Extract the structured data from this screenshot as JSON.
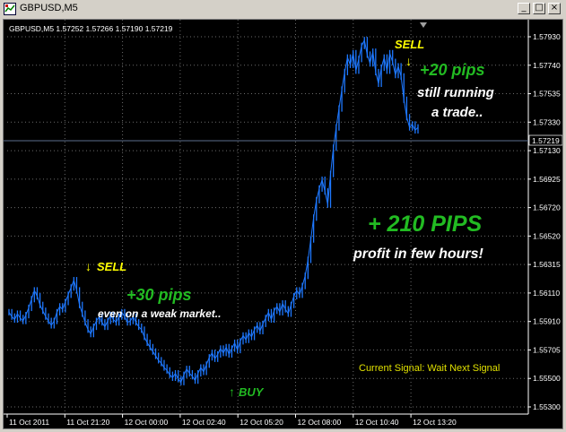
{
  "window": {
    "title": "GBPUSD,M5",
    "buttons": {
      "minimize": "_",
      "restore": "□",
      "close": "×"
    }
  },
  "chart_header": "GBPUSD,M5  1.57252 1.57266 1.57190 1.57219",
  "chart_data": {
    "type": "line",
    "symbol": "GBPUSD",
    "timeframe": "M5",
    "ohlc": {
      "open": 1.57252,
      "high": 1.57266,
      "low": 1.5719,
      "close": 1.57219
    },
    "current_price": "1.57219",
    "ylim": [
      1.5525,
      1.5796
    ],
    "y_ticks": [
      "1.57930",
      "1.57740",
      "1.57535",
      "1.57330",
      "1.57130",
      "1.56925",
      "1.56720",
      "1.56520",
      "1.56315",
      "1.56110",
      "1.55910",
      "1.55705",
      "1.55500",
      "1.55300"
    ],
    "x_ticks": [
      "11 Oct 2011",
      "11 Oct 21:20",
      "12 Oct 00:00",
      "12 Oct 02:40",
      "12 Oct 05:20",
      "12 Oct 08:00",
      "12 Oct 10:40",
      "12 Oct 13:20"
    ],
    "series": [
      {
        "x": [
          0,
          1,
          2,
          3,
          4,
          5,
          6,
          7,
          8,
          9,
          10,
          11,
          12,
          13,
          14,
          15,
          16,
          17,
          18,
          19,
          20,
          21,
          22,
          23,
          24,
          25,
          26,
          27,
          28,
          29,
          30,
          31,
          32,
          33,
          34,
          35,
          36,
          37,
          38,
          39,
          40,
          41,
          42,
          43,
          44,
          45,
          46,
          47,
          48,
          49,
          50,
          51,
          52,
          53,
          54,
          55,
          56,
          57,
          58,
          59,
          60,
          61,
          62,
          63,
          64,
          65,
          66,
          67,
          68,
          69,
          70,
          71,
          72,
          73,
          74,
          75,
          76,
          77,
          78,
          79,
          80,
          81,
          82,
          83,
          84,
          85,
          86,
          87,
          88,
          89,
          90,
          91,
          92,
          93,
          94,
          95,
          96,
          97,
          98,
          99,
          100,
          101,
          102,
          103,
          104,
          105,
          106,
          107,
          108,
          109,
          110,
          111,
          112,
          113,
          114,
          115,
          116,
          117,
          118,
          119,
          120,
          121,
          122,
          123,
          124,
          125,
          126,
          127,
          128,
          129,
          130,
          131,
          132,
          133,
          134,
          135,
          136,
          137,
          138,
          139,
          140,
          141,
          142,
          143,
          144,
          145,
          146,
          147,
          148,
          149,
          150,
          151,
          152,
          153,
          154,
          155,
          156,
          157,
          158,
          159
        ],
        "values": [
          1.5595,
          1.5592,
          1.559,
          1.5594,
          1.5591,
          1.5589,
          1.5593,
          1.5598,
          1.5604,
          1.561,
          1.5606,
          1.56,
          1.5596,
          1.5592,
          1.5589,
          1.5586,
          1.5589,
          1.5595,
          1.5599,
          1.5597,
          1.5602,
          1.5607,
          1.5612,
          1.5617,
          1.561,
          1.56,
          1.5594,
          1.5588,
          1.5583,
          1.558,
          1.5585,
          1.5589,
          1.5592,
          1.5588,
          1.5585,
          1.5589,
          1.5593,
          1.559,
          1.5588,
          1.5592,
          1.5595,
          1.5592,
          1.5588,
          1.5589,
          1.5592,
          1.5588,
          1.5585,
          1.5583,
          1.5578,
          1.5574,
          1.5571,
          1.5568,
          1.5565,
          1.5562,
          1.556,
          1.5557,
          1.5555,
          1.5552,
          1.555,
          1.5553,
          1.5549,
          1.5547,
          1.5552,
          1.5556,
          1.5553,
          1.5551,
          1.5548,
          1.5553,
          1.5557,
          1.5554,
          1.5559,
          1.5564,
          1.5567,
          1.5563,
          1.5566,
          1.557,
          1.5567,
          1.5571,
          1.5566,
          1.557,
          1.5574,
          1.5569,
          1.5575,
          1.5579,
          1.5576,
          1.5581,
          1.5578,
          1.5583,
          1.5586,
          1.5582,
          1.5587,
          1.5591,
          1.5595,
          1.559,
          1.5596,
          1.5599,
          1.5595,
          1.5601,
          1.5597,
          1.5594,
          1.56,
          1.5606,
          1.561,
          1.5607,
          1.5613,
          1.562,
          1.5631,
          1.5645,
          1.566,
          1.5672,
          1.568,
          1.5686,
          1.5678,
          1.5669,
          1.569,
          1.5708,
          1.5722,
          1.5735,
          1.5748,
          1.576,
          1.577,
          1.5765,
          1.5773,
          1.5761,
          1.5769,
          1.5778,
          1.5782,
          1.5772,
          1.5766,
          1.5774,
          1.576,
          1.5752,
          1.5763,
          1.577,
          1.5761,
          1.5773,
          1.5767,
          1.5758,
          1.5764,
          1.5757,
          1.5741,
          1.5729,
          1.5722,
          1.5724,
          1.572,
          1.5722,
          1.5722,
          1.5722,
          1.5722,
          1.5722,
          1.5722,
          1.5722,
          1.5722,
          1.5722,
          1.5722,
          1.5722,
          1.5722,
          1.5722,
          1.5722,
          1.5722
        ],
        "visible_count": 146
      }
    ]
  },
  "annotations": {
    "sell_left": "SELL",
    "pips_left": "+30 pips",
    "pips_left_sub": "even on a weak market..",
    "buy": "BUY",
    "big_profit": "+ 210 PIPS",
    "big_profit_sub": "profit in few hours!",
    "sell_right": "SELL",
    "pips_right": "+20 pips",
    "pips_right_sub1": "still running",
    "pips_right_sub2": "a trade..",
    "signal": "Current Signal: Wait Next Signal"
  },
  "colors": {
    "background": "#000000",
    "line": "#1e78ff",
    "grid": "#6b6b6b",
    "sell": "#ffff00",
    "pips": "#22bb22",
    "white": "#ffffff",
    "signal": "#e0e000",
    "price_tag_bg": "#000000"
  }
}
